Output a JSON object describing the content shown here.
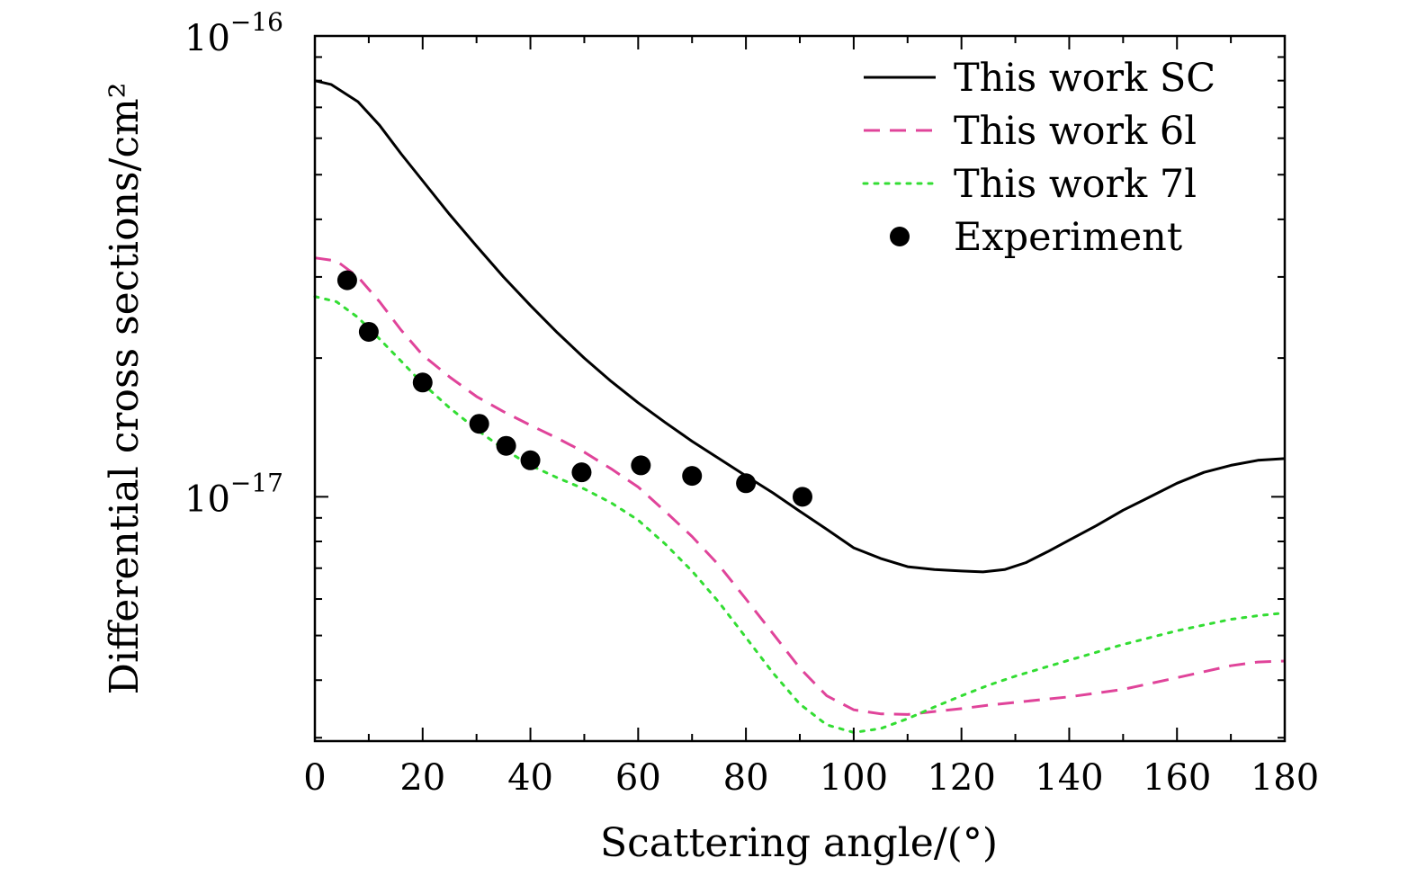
{
  "chart_data": {
    "type": "line",
    "xlabel": "Scattering angle/(°)",
    "ylabel": "Differential cross sections/cm²",
    "xlim": [
      0,
      180
    ],
    "ylim": [
      2.95e-18,
      1e-16
    ],
    "y_scale": "log",
    "x_ticks": [
      "0",
      "20",
      "40",
      "60",
      "80",
      "100",
      "120",
      "140",
      "160",
      "180"
    ],
    "y_tick_labels": [
      {
        "mantissa": "10",
        "exponent": "−16",
        "value": 1e-16
      },
      {
        "mantissa": "10",
        "exponent": "−17",
        "value": 1e-17
      }
    ],
    "grid": false,
    "legend_position": "top-right",
    "series": [
      {
        "name": "This work SC",
        "style": "solid",
        "color": "#000000",
        "x": [
          0,
          3,
          8,
          12,
          16,
          20,
          25,
          30,
          35,
          40,
          45,
          50,
          55,
          60,
          65,
          70,
          75,
          80,
          85,
          90,
          95,
          100,
          105,
          110,
          115,
          120,
          124,
          128,
          132,
          136,
          140,
          145,
          150,
          155,
          160,
          165,
          170,
          175,
          180
        ],
        "y": [
          8e-17,
          7.85e-17,
          7.2e-17,
          6.4e-17,
          5.55e-17,
          4.85e-17,
          4.1e-17,
          3.5e-17,
          3e-17,
          2.6e-17,
          2.27e-17,
          2e-17,
          1.78e-17,
          1.6e-17,
          1.45e-17,
          1.32e-17,
          1.21e-17,
          1.11e-17,
          1.02e-17,
          9.3e-18,
          8.5e-18,
          7.75e-18,
          7.35e-18,
          7.05e-18,
          6.95e-18,
          6.9e-18,
          6.87e-18,
          6.95e-18,
          7.2e-18,
          7.6e-18,
          8.05e-18,
          8.65e-18,
          9.35e-18,
          1e-17,
          1.07e-17,
          1.13e-17,
          1.17e-17,
          1.2e-17,
          1.21e-17
        ]
      },
      {
        "name": "This work 6l",
        "style": "dashed",
        "color": "#e0449a",
        "x": [
          0,
          4,
          8,
          12,
          16,
          20,
          25,
          30,
          35,
          40,
          45,
          50,
          55,
          60,
          65,
          70,
          75,
          80,
          85,
          90,
          95,
          100,
          105,
          110,
          115,
          120,
          125,
          130,
          140,
          150,
          160,
          170,
          175,
          180
        ],
        "y": [
          3.3e-17,
          3.25e-17,
          3e-17,
          2.65e-17,
          2.3e-17,
          2.03e-17,
          1.82e-17,
          1.65e-17,
          1.53e-17,
          1.43e-17,
          1.34e-17,
          1.25e-17,
          1.15e-17,
          1.05e-17,
          9.3e-18,
          8.2e-18,
          7.1e-18,
          6e-18,
          5.05e-18,
          4.25e-18,
          3.7e-18,
          3.45e-18,
          3.38e-18,
          3.37e-18,
          3.42e-18,
          3.47e-18,
          3.53e-18,
          3.58e-18,
          3.68e-18,
          3.82e-18,
          4.05e-18,
          4.3e-18,
          4.38e-18,
          4.4e-18
        ]
      },
      {
        "name": "This work 7l",
        "style": "dotted",
        "color": "#33dd33",
        "x": [
          0,
          4,
          8,
          12,
          16,
          20,
          25,
          30,
          35,
          40,
          45,
          50,
          55,
          60,
          65,
          70,
          75,
          80,
          85,
          90,
          95,
          100,
          105,
          110,
          115,
          120,
          125,
          130,
          140,
          150,
          160,
          170,
          175,
          180
        ],
        "y": [
          2.72e-17,
          2.65e-17,
          2.45e-17,
          2.2e-17,
          1.97e-17,
          1.76e-17,
          1.56e-17,
          1.4e-17,
          1.27e-17,
          1.17e-17,
          1.1e-17,
          1.04e-17,
          9.7e-18,
          8.9e-18,
          7.9e-18,
          6.9e-18,
          5.9e-18,
          4.95e-18,
          4.15e-18,
          3.55e-18,
          3.2e-18,
          3.08e-18,
          3.14e-18,
          3.3e-18,
          3.5e-18,
          3.7e-18,
          3.9e-18,
          4.08e-18,
          4.42e-18,
          4.78e-18,
          5.12e-18,
          5.42e-18,
          5.52e-18,
          5.6e-18
        ]
      },
      {
        "name": "Experiment",
        "style": "markers",
        "color": "#000000",
        "x": [
          6,
          10,
          20,
          30.5,
          35.5,
          40,
          49.5,
          60.5,
          70,
          80,
          90.5
        ],
        "y": [
          2.95e-17,
          2.28e-17,
          1.77e-17,
          1.44e-17,
          1.29e-17,
          1.2e-17,
          1.13e-17,
          1.17e-17,
          1.11e-17,
          1.07e-17,
          1e-17
        ]
      }
    ]
  }
}
